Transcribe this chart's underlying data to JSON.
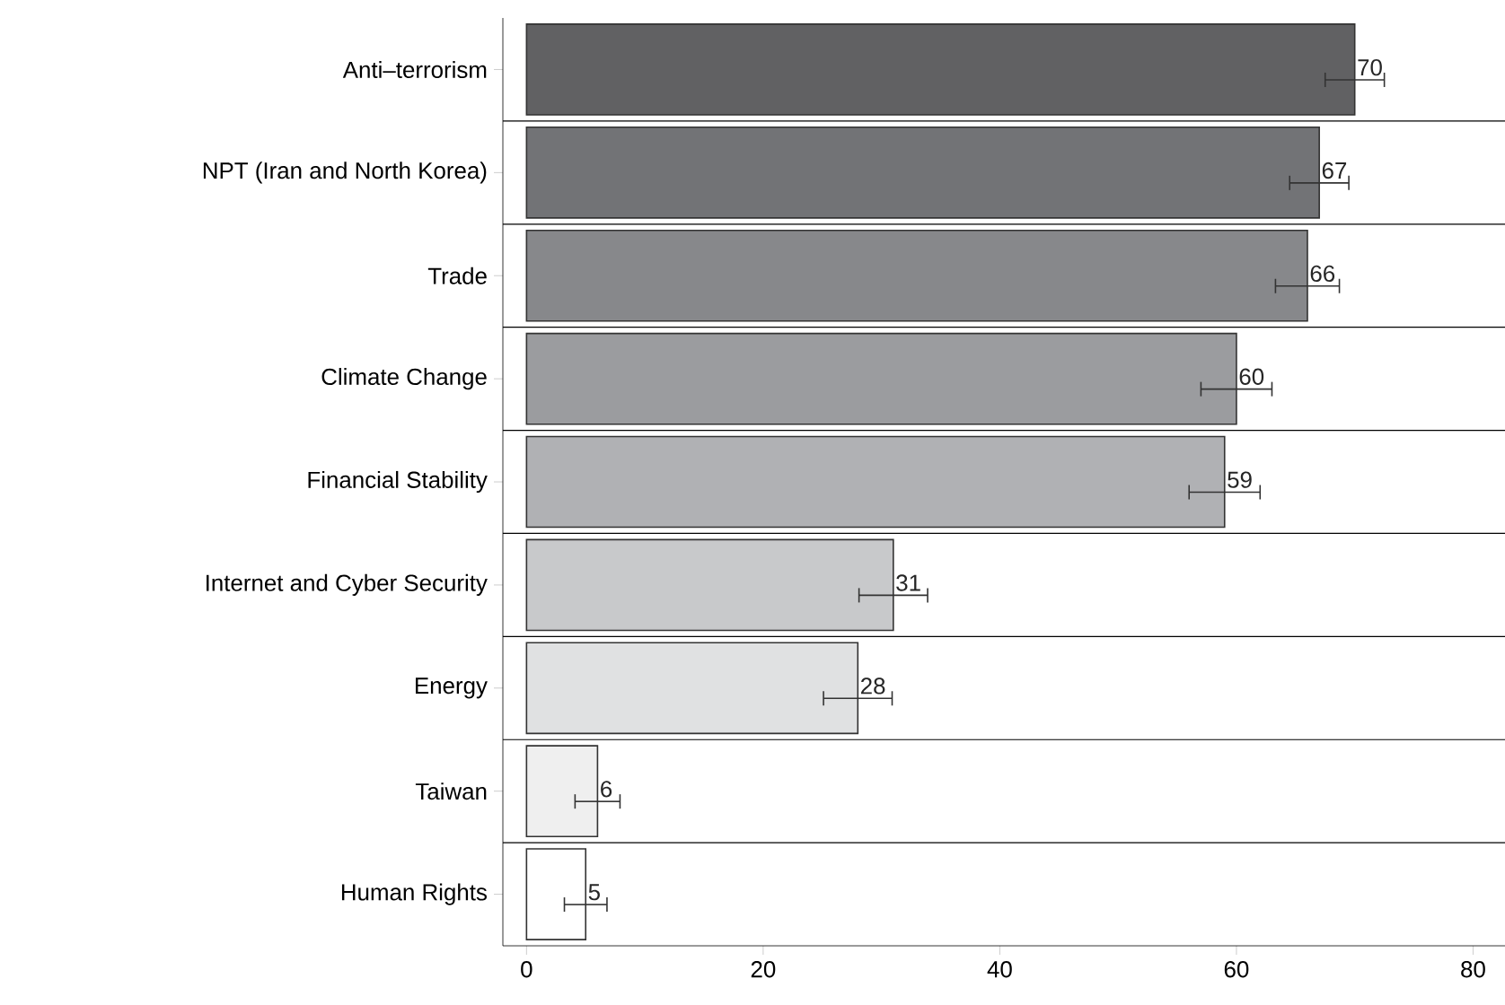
{
  "chart_data": {
    "type": "bar",
    "orientation": "horizontal",
    "categories": [
      "Anti–terrorism",
      "NPT (Iran and North Korea)",
      "Trade",
      "Climate Change",
      "Financial Stability",
      "Internet and Cyber Security",
      "Energy",
      "Taiwan",
      "Human Rights"
    ],
    "values": [
      70,
      67,
      66,
      60,
      59,
      31,
      28,
      6,
      5
    ],
    "errors": [
      2.5,
      2.5,
      2.7,
      3,
      3,
      2.9,
      2.9,
      1.9,
      1.8
    ],
    "colors": [
      "#616163",
      "#727376",
      "#87888b",
      "#9b9c9f",
      "#b0b1b4",
      "#c8c9cb",
      "#e0e1e2",
      "#efefef",
      "#ffffff"
    ],
    "data_labels": true,
    "xlim": [
      -2,
      82.7
    ],
    "xticks": [
      0,
      20,
      40,
      60,
      80
    ],
    "grid": "y"
  }
}
